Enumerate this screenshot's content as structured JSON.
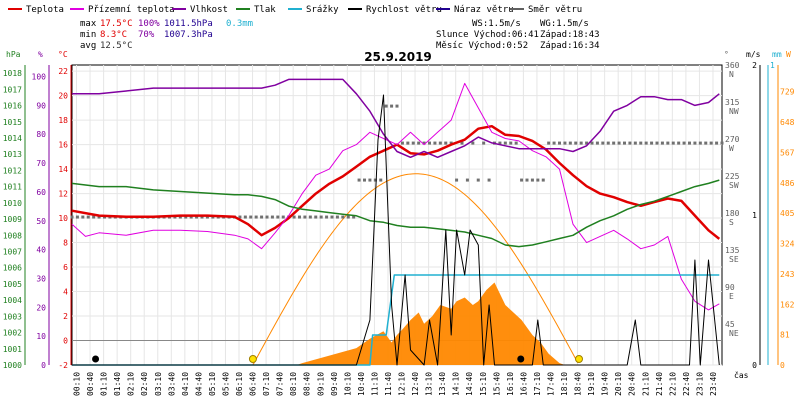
{
  "legend": [
    {
      "label": "Teplota",
      "color": "#e00000"
    },
    {
      "label": "Přízemní teplota",
      "color": "#e000e0"
    },
    {
      "label": "Vlhkost",
      "color": "#8000a0"
    },
    {
      "label": "Tlak",
      "color": "#208020"
    },
    {
      "label": "Srážky",
      "color": "#20b0d0"
    },
    {
      "label": "Rychlost větru",
      "color": "#000000"
    },
    {
      "label": "Náraz větru",
      "color": "#200090"
    },
    {
      "label": "Směr větru",
      "color": "#606060"
    }
  ],
  "stats": {
    "max_label": "max",
    "min_label": "min",
    "avg_label": "avg",
    "max_temp": "17.5°C",
    "max_hum": "100%",
    "max_pres": "1011.5hPa",
    "max_rain": "0.3mm",
    "min_temp": "8.3°C",
    "min_hum": "70%",
    "min_pres": "1007.3hPa",
    "avg_temp": "12.5°C"
  },
  "info": {
    "ws": "WS:1.5m/s",
    "wg": "WG:1.5m/s",
    "sun_row": "Slunce Východ:06:41",
    "sun_set": "Západ:18:43",
    "moon_row": "Měsíc  Východ:0:52",
    "moon_set": "Západ:16:34"
  },
  "title": "25.9.2019",
  "axis_units": {
    "hpa": "hPa",
    "pct": "%",
    "degc": "°C",
    "deg": "°",
    "ms": "m/s",
    "mm": "mm",
    "w": "W",
    "time": "čas"
  },
  "chart_data": {
    "type": "line",
    "title": "25.9.2019",
    "x_ticks": [
      "00:10",
      "00:40",
      "01:10",
      "01:40",
      "02:10",
      "02:40",
      "03:10",
      "03:40",
      "04:10",
      "04:40",
      "05:10",
      "05:40",
      "06:10",
      "06:40",
      "07:10",
      "07:40",
      "08:10",
      "08:40",
      "09:10",
      "09:40",
      "10:10",
      "10:40",
      "11:10",
      "11:40",
      "12:10",
      "12:40",
      "13:10",
      "13:40",
      "14:10",
      "14:40",
      "15:10",
      "15:40",
      "16:10",
      "16:40",
      "17:10",
      "17:40",
      "18:10",
      "18:40",
      "19:10",
      "19:40",
      "20:10",
      "20:40",
      "21:10",
      "21:40",
      "22:10",
      "22:40",
      "23:10",
      "23:40"
    ],
    "axes": {
      "hpa": {
        "ticks": [
          "1000",
          "1001",
          "1002",
          "1003",
          "1004",
          "1005",
          "1006",
          "1007",
          "1008",
          "1009",
          "1010",
          "1011",
          "1012",
          "1013",
          "1014",
          "1015",
          "1016",
          "1017",
          "1018"
        ],
        "range": [
          1000,
          1018.5
        ]
      },
      "pct": {
        "ticks": [
          "0",
          "10",
          "20",
          "30",
          "40",
          "50",
          "60",
          "70",
          "80",
          "90",
          "100"
        ],
        "range": [
          0,
          104
        ]
      },
      "degc": {
        "ticks": [
          "-2",
          "0",
          "2",
          "4",
          "6",
          "8",
          "10",
          "12",
          "14",
          "16",
          "18",
          "20",
          "22"
        ],
        "range": [
          -2,
          22.5
        ]
      },
      "deg": {
        "ticks": [
          "45",
          "90",
          "135",
          "180",
          "225",
          "270",
          "315",
          "360"
        ],
        "dirs": [
          "NE",
          "E",
          "SE",
          "S",
          "SW",
          "W",
          "NW",
          "N"
        ],
        "range": [
          0,
          365
        ]
      },
      "ms": {
        "ticks": [
          "0",
          "1",
          "2"
        ],
        "range": [
          0,
          2
        ]
      },
      "mm": {
        "ticks": [
          "1"
        ],
        "range": [
          0,
          1
        ]
      },
      "w": {
        "ticks": [
          "0",
          "81",
          "162",
          "243",
          "324",
          "405",
          "486",
          "567",
          "648",
          "729"
        ],
        "range": [
          0,
          800
        ]
      }
    },
    "series": [
      {
        "name": "Teplota",
        "axis": "degc",
        "color": "#e00000",
        "x": [
          0,
          1,
          2,
          3,
          4,
          5,
          6,
          6.5,
          7,
          7.5,
          8,
          8.5,
          9,
          9.5,
          10,
          10.5,
          11,
          11.5,
          12,
          12.5,
          13,
          13.5,
          14,
          14.5,
          15,
          15.5,
          16,
          16.5,
          17,
          17.5,
          18,
          18.5,
          19,
          19.5,
          20,
          20.5,
          21,
          21.5,
          22,
          22.5,
          23,
          23.5,
          23.9
        ],
        "y": [
          10.6,
          10.2,
          10.1,
          10.1,
          10.2,
          10.2,
          10.1,
          9.5,
          8.6,
          9.2,
          10,
          11,
          12,
          12.8,
          13.4,
          14.2,
          15,
          15.5,
          16,
          15.3,
          15.2,
          15.5,
          16,
          16.4,
          17.3,
          17.5,
          16.8,
          16.7,
          16.3,
          15.6,
          14.5,
          13.5,
          12.6,
          12,
          11.7,
          11.3,
          11,
          11.3,
          11.6,
          11.4,
          10.2,
          9,
          8.3
        ]
      },
      {
        "name": "Přízemní teplota",
        "axis": "degc",
        "color": "#e000e0",
        "x": [
          0,
          0.5,
          1,
          2,
          3,
          4,
          5,
          6,
          6.5,
          7,
          7.5,
          8,
          8.5,
          9,
          9.5,
          10,
          10.5,
          11,
          11.5,
          12,
          12.5,
          13,
          13.5,
          14,
          14.5,
          15,
          15.5,
          16,
          16.5,
          17,
          17.5,
          18,
          18.5,
          19,
          19.5,
          20,
          20.5,
          21,
          21.5,
          22,
          22.5,
          23,
          23.5,
          23.9
        ],
        "y": [
          9.5,
          8.5,
          8.8,
          8.6,
          9,
          9,
          8.9,
          8.6,
          8.3,
          7.5,
          8.8,
          10.2,
          12,
          13.5,
          14,
          15.5,
          16,
          17,
          16.5,
          16,
          17,
          16,
          17,
          18,
          21,
          19,
          17,
          16.5,
          16.3,
          15.5,
          15,
          14,
          9.5,
          8,
          8.5,
          9,
          8.3,
          7.5,
          7.8,
          8.5,
          5,
          3.2,
          2.5,
          3
        ]
      },
      {
        "name": "Vlhkost",
        "axis": "pct",
        "color": "#8000a0",
        "x": [
          0,
          1,
          2,
          3,
          4,
          5,
          6,
          6.5,
          7,
          7.5,
          8,
          8.5,
          9,
          9.5,
          10,
          10.5,
          11,
          11.5,
          12,
          12.5,
          13,
          13.5,
          14,
          14.5,
          15,
          15.5,
          16,
          16.5,
          17,
          17.5,
          18,
          18.5,
          19,
          19.5,
          20,
          20.5,
          21,
          21.5,
          22,
          22.5,
          23,
          23.5,
          23.9
        ],
        "y": [
          94,
          94,
          95,
          96,
          96,
          96,
          96,
          96,
          96,
          97,
          99,
          99,
          99,
          99,
          99,
          94,
          88,
          80,
          74,
          72,
          74,
          72,
          74,
          76,
          79,
          77,
          76,
          75,
          75,
          75,
          75,
          74,
          76,
          81,
          88,
          90,
          93,
          93,
          92,
          92,
          90,
          91,
          94
        ]
      },
      {
        "name": "Tlak",
        "axis": "hpa",
        "color": "#208020",
        "x": [
          0,
          1,
          2,
          3,
          4,
          5,
          6,
          6.5,
          7,
          7.5,
          8,
          8.5,
          9,
          9.5,
          10,
          10.5,
          11,
          11.5,
          12,
          12.5,
          13,
          13.5,
          14,
          14.5,
          15,
          15.5,
          16,
          16.5,
          17,
          17.5,
          18,
          18.5,
          19,
          19.5,
          20,
          20.5,
          21,
          21.5,
          22,
          22.5,
          23,
          23.5,
          23.9
        ],
        "y": [
          1011.2,
          1011,
          1011,
          1010.8,
          1010.7,
          1010.6,
          1010.5,
          1010.5,
          1010.4,
          1010.2,
          1009.8,
          1009.6,
          1009.5,
          1009.4,
          1009.3,
          1009.2,
          1008.9,
          1008.8,
          1008.6,
          1008.5,
          1008.5,
          1008.4,
          1008.3,
          1008.2,
          1008,
          1007.8,
          1007.4,
          1007.3,
          1007.4,
          1007.6,
          1007.8,
          1008,
          1008.5,
          1008.9,
          1009.2,
          1009.6,
          1009.9,
          1010.1,
          1010.4,
          1010.7,
          1011,
          1011.2,
          1011.4
        ]
      },
      {
        "name": "Srážky",
        "axis": "mm",
        "color": "#20b0d0",
        "x": [
          0,
          11,
          11.1,
          11.6,
          11.9,
          23.9
        ],
        "y": [
          0,
          0,
          0.1,
          0.1,
          0.3,
          0.3
        ]
      },
      {
        "name": "Rychlost větru",
        "axis": "ms",
        "color": "#000000",
        "x": [
          0,
          10.5,
          11,
          11.3,
          11.5,
          11.8,
          12,
          12.3,
          12.5,
          13,
          13.2,
          13.5,
          13.8,
          14,
          14.2,
          14.5,
          14.7,
          15,
          15.2,
          15.4,
          15.6,
          16,
          16.5,
          17,
          17.2,
          17.4,
          18,
          20,
          20.2,
          20.5,
          20.8,
          21,
          22.8,
          23,
          23.2,
          23.5,
          23.9
        ],
        "y": [
          0,
          0,
          0.3,
          1.5,
          1.8,
          0.4,
          0,
          0.6,
          0.1,
          0,
          0.3,
          0,
          0.9,
          0.2,
          0.9,
          0.6,
          0.9,
          0.8,
          0,
          0.4,
          0,
          0,
          0,
          0,
          0.3,
          0,
          0,
          0,
          0,
          0,
          0.3,
          0,
          0,
          0.7,
          0,
          0.7,
          0
        ]
      },
      {
        "name": "Náraz větru",
        "axis": "ms",
        "color": "#200090",
        "x": [],
        "y": []
      },
      {
        "name": "Směr větru",
        "axis": "deg",
        "color": "#606060",
        "x": [],
        "y": []
      }
    ],
    "solar": {
      "axis": "w",
      "color": "#ff8800",
      "sunrise": 6.68,
      "sunset": 18.72,
      "peak": 510
    },
    "sun_markers": [
      6.68,
      18.72
    ],
    "moon_markers": [
      0.87,
      16.57
    ],
    "wind_dir_deg": [
      180,
      180,
      180,
      180,
      180,
      180,
      180,
      180,
      180,
      180,
      180,
      180,
      180,
      180,
      180,
      180,
      180,
      180,
      180,
      180,
      180,
      180,
      180,
      180,
      180,
      180,
      180,
      180,
      180,
      180,
      180,
      180,
      180,
      180,
      180,
      180,
      180,
      180,
      180,
      180,
      180,
      180,
      180,
      180,
      180,
      180,
      180,
      180,
      180,
      180,
      180,
      180,
      180,
      180,
      180,
      180,
      180,
      180,
      180,
      180,
      180,
      180,
      180,
      180,
      180,
      180,
      180,
      180,
      180,
      180,
      180,
      180,
      180,
      180,
      180,
      180,
      180,
      180,
      180,
      180,
      180,
      180,
      180,
      180,
      180,
      180,
      180,
      180,
      180,
      180,
      180,
      180,
      180,
      180,
      180,
      180,
      180,
      180,
      180,
      180,
      180,
      180,
      180,
      180,
      180,
      180,
      180,
      180,
      180,
      180,
      180,
      180,
      180,
      180,
      180,
      180,
      180,
      180,
      180,
      180,
      180,
      180,
      180,
      180,
      180,
      180,
      180,
      180,
      180,
      180,
      180,
      180,
      180,
      180,
      180,
      180,
      180,
      180,
      180,
      180,
      180,
      180,
      180,
      180
    ],
    "wind_dir_x_start": 0,
    "wind_dir_step": 0.1
  }
}
